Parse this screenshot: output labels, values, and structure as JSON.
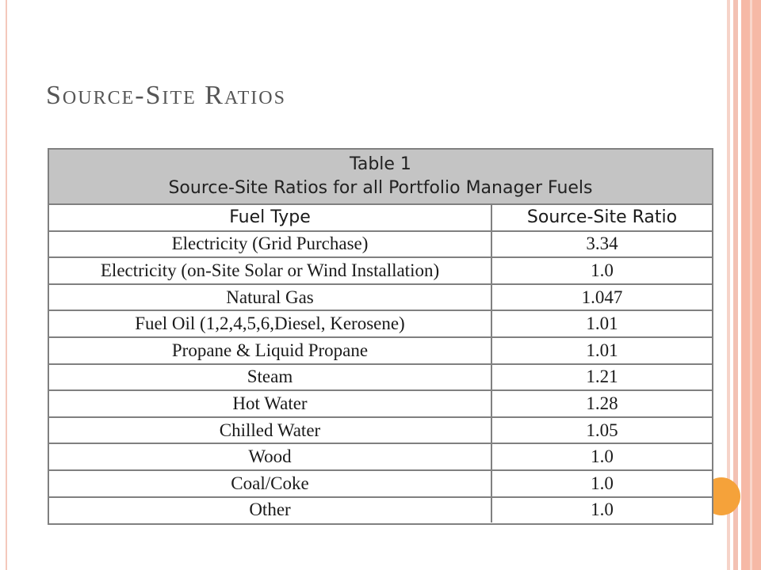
{
  "slide": {
    "title": "Source-Site Ratios"
  },
  "table": {
    "caption_line1": "Table 1",
    "caption_line2": "Source-Site Ratios for all Portfolio Manager Fuels",
    "headers": [
      "Fuel Type",
      "Source-Site Ratio"
    ],
    "rows": [
      {
        "fuel": "Electricity (Grid Purchase)",
        "ratio": "3.34"
      },
      {
        "fuel": "Electricity (on-Site Solar or Wind Installation)",
        "ratio": "1.0"
      },
      {
        "fuel": "Natural Gas",
        "ratio": "1.047"
      },
      {
        "fuel": "Fuel Oil (1,2,4,5,6,Diesel, Kerosene)",
        "ratio": "1.01"
      },
      {
        "fuel": "Propane & Liquid Propane",
        "ratio": "1.01"
      },
      {
        "fuel": "Steam",
        "ratio": "1.21"
      },
      {
        "fuel": "Hot Water",
        "ratio": "1.28"
      },
      {
        "fuel": "Chilled Water",
        "ratio": "1.05"
      },
      {
        "fuel": "Wood",
        "ratio": "1.0"
      },
      {
        "fuel": "Coal/Coke",
        "ratio": "1.0"
      },
      {
        "fuel": "Other",
        "ratio": "1.0"
      }
    ]
  },
  "theme": {
    "title_color": "#555555",
    "header_bg": "#c4c4c4",
    "border_color": "#808080",
    "accent_orange": "#f5a23a",
    "stripe_color": "#f6b9a6"
  }
}
